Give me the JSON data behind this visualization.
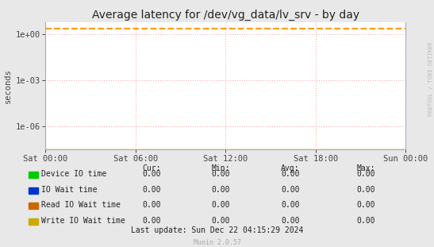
{
  "title": "Average latency for /dev/vg_data/lv_srv - by day",
  "ylabel": "seconds",
  "background_color": "#e8e8e8",
  "plot_bg_color": "#ffffff",
  "grid_color_h": "#ffb0b0",
  "grid_color_v": "#ffb0b0",
  "x_ticks_labels": [
    "Sat 00:00",
    "Sat 06:00",
    "Sat 12:00",
    "Sat 18:00",
    "Sun 00:00"
  ],
  "x_ticks_pos": [
    0.0,
    0.25,
    0.5,
    0.75,
    1.0
  ],
  "ylim_min": 3e-08,
  "ylim_max": 6.0,
  "ytick_vals": [
    1e-06,
    0.001,
    1.0
  ],
  "ytick_labels": [
    "1e-06",
    "1e-03",
    "1e+00"
  ],
  "dashed_line_value": 2.3,
  "dashed_line_color": "#ff9900",
  "baseline_value": 3e-08,
  "baseline_color": "#ccaa00",
  "legend_items": [
    {
      "label": "Device IO time",
      "color": "#00cc00"
    },
    {
      "label": "IO Wait time",
      "color": "#0033cc"
    },
    {
      "label": "Read IO Wait time",
      "color": "#cc6600"
    },
    {
      "label": "Write IO Wait time",
      "color": "#ccaa00"
    }
  ],
  "legend_cols": [
    "Cur:",
    "Min:",
    "Avg:",
    "Max:"
  ],
  "legend_values": [
    [
      "0.00",
      "0.00",
      "0.00",
      "0.00"
    ],
    [
      "0.00",
      "0.00",
      "0.00",
      "0.00"
    ],
    [
      "0.00",
      "0.00",
      "0.00",
      "0.00"
    ],
    [
      "0.00",
      "0.00",
      "0.00",
      "0.00"
    ]
  ],
  "last_update": "Last update: Sun Dec 22 04:15:29 2024",
  "watermark": "RRDTOOL / TOBI OETIKER",
  "muninver": "Munin 2.0.57",
  "title_fontsize": 10,
  "axis_fontsize": 7.5,
  "legend_fontsize": 7.0
}
